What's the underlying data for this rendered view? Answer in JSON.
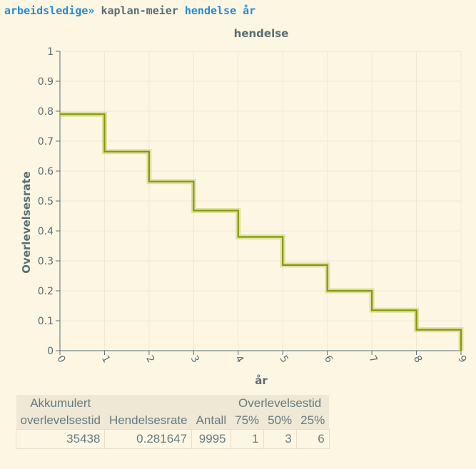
{
  "command": {
    "dataset": "arbeidsledige",
    "separator": "»",
    "name": "kaplan-meier",
    "args": "hendelse år"
  },
  "chart_data": {
    "type": "line",
    "step": true,
    "title": "hendelse",
    "xlabel": "år",
    "ylabel": "Overlevelsesrate",
    "xlim": [
      0,
      9
    ],
    "ylim": [
      0,
      1
    ],
    "xticks": [
      "0",
      "1",
      "2",
      "3",
      "4",
      "5",
      "6",
      "7",
      "8",
      "9"
    ],
    "yticks": [
      "0",
      "0.1",
      "0.2",
      "0.3",
      "0.4",
      "0.5",
      "0.6",
      "0.7",
      "0.8",
      "0.9",
      "1"
    ],
    "grid": true,
    "colors": {
      "line": "#859900",
      "band": "#c9d27f"
    },
    "x": [
      0,
      1,
      2,
      3,
      4,
      5,
      6,
      7,
      8,
      9
    ],
    "y": [
      0.79,
      0.665,
      0.565,
      0.468,
      0.38,
      0.286,
      0.2,
      0.135,
      0.07,
      0.0
    ]
  },
  "table": {
    "header_top": {
      "col1": "Akkumulert",
      "group": "Overlevelsestid"
    },
    "headers": [
      "overlevelsestid",
      "Hendelsesrate",
      "Antall",
      "75%",
      "50%",
      "25%"
    ],
    "row": [
      "35438",
      "0.281647",
      "9995",
      "1",
      "3",
      "6"
    ]
  }
}
